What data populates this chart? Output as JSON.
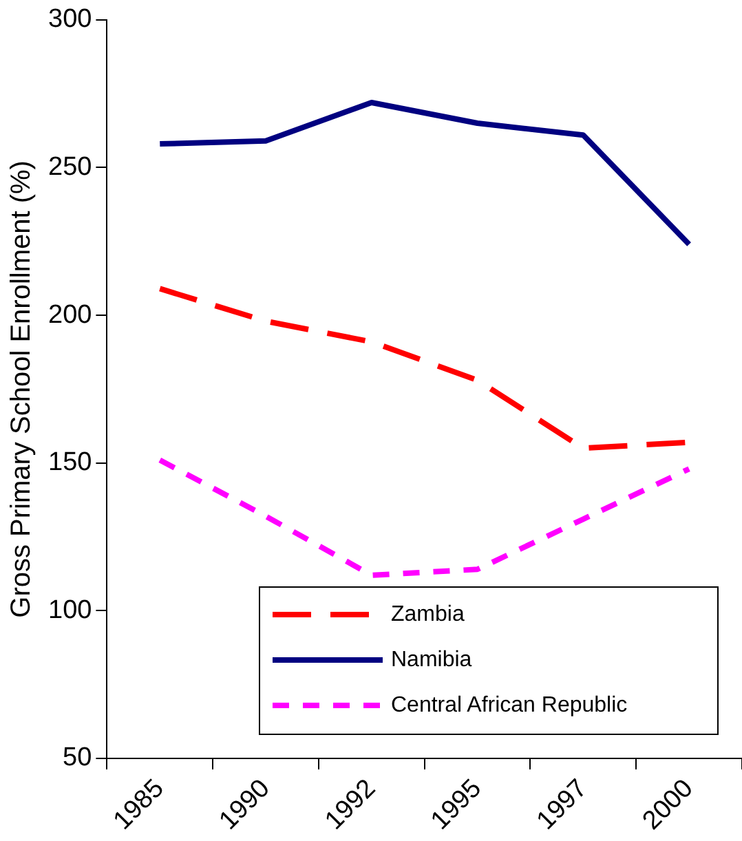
{
  "chart_data": {
    "type": "line",
    "ylabel": "Gross Primary School Enrollment (%)",
    "categories": [
      "1985",
      "1990",
      "1992",
      "1995",
      "1997",
      "2000"
    ],
    "series": [
      {
        "name": "Zambia",
        "color": "#ff0000",
        "line_style": "dashed",
        "values": [
          209,
          198,
          191,
          178,
          155,
          157
        ]
      },
      {
        "name": "Namibia",
        "color": "#000080",
        "line_style": "solid",
        "values": [
          258,
          259,
          272,
          265,
          261,
          224
        ]
      },
      {
        "name": "Central African Republic",
        "color": "#ff00ff",
        "line_style": "dotted",
        "values": [
          151,
          132,
          112,
          114,
          131,
          148
        ]
      }
    ],
    "ylim": [
      50,
      300
    ],
    "yticks": [
      50,
      100,
      150,
      200,
      250,
      300
    ],
    "grid": false,
    "legend": "bottom right",
    "marker": "none"
  }
}
